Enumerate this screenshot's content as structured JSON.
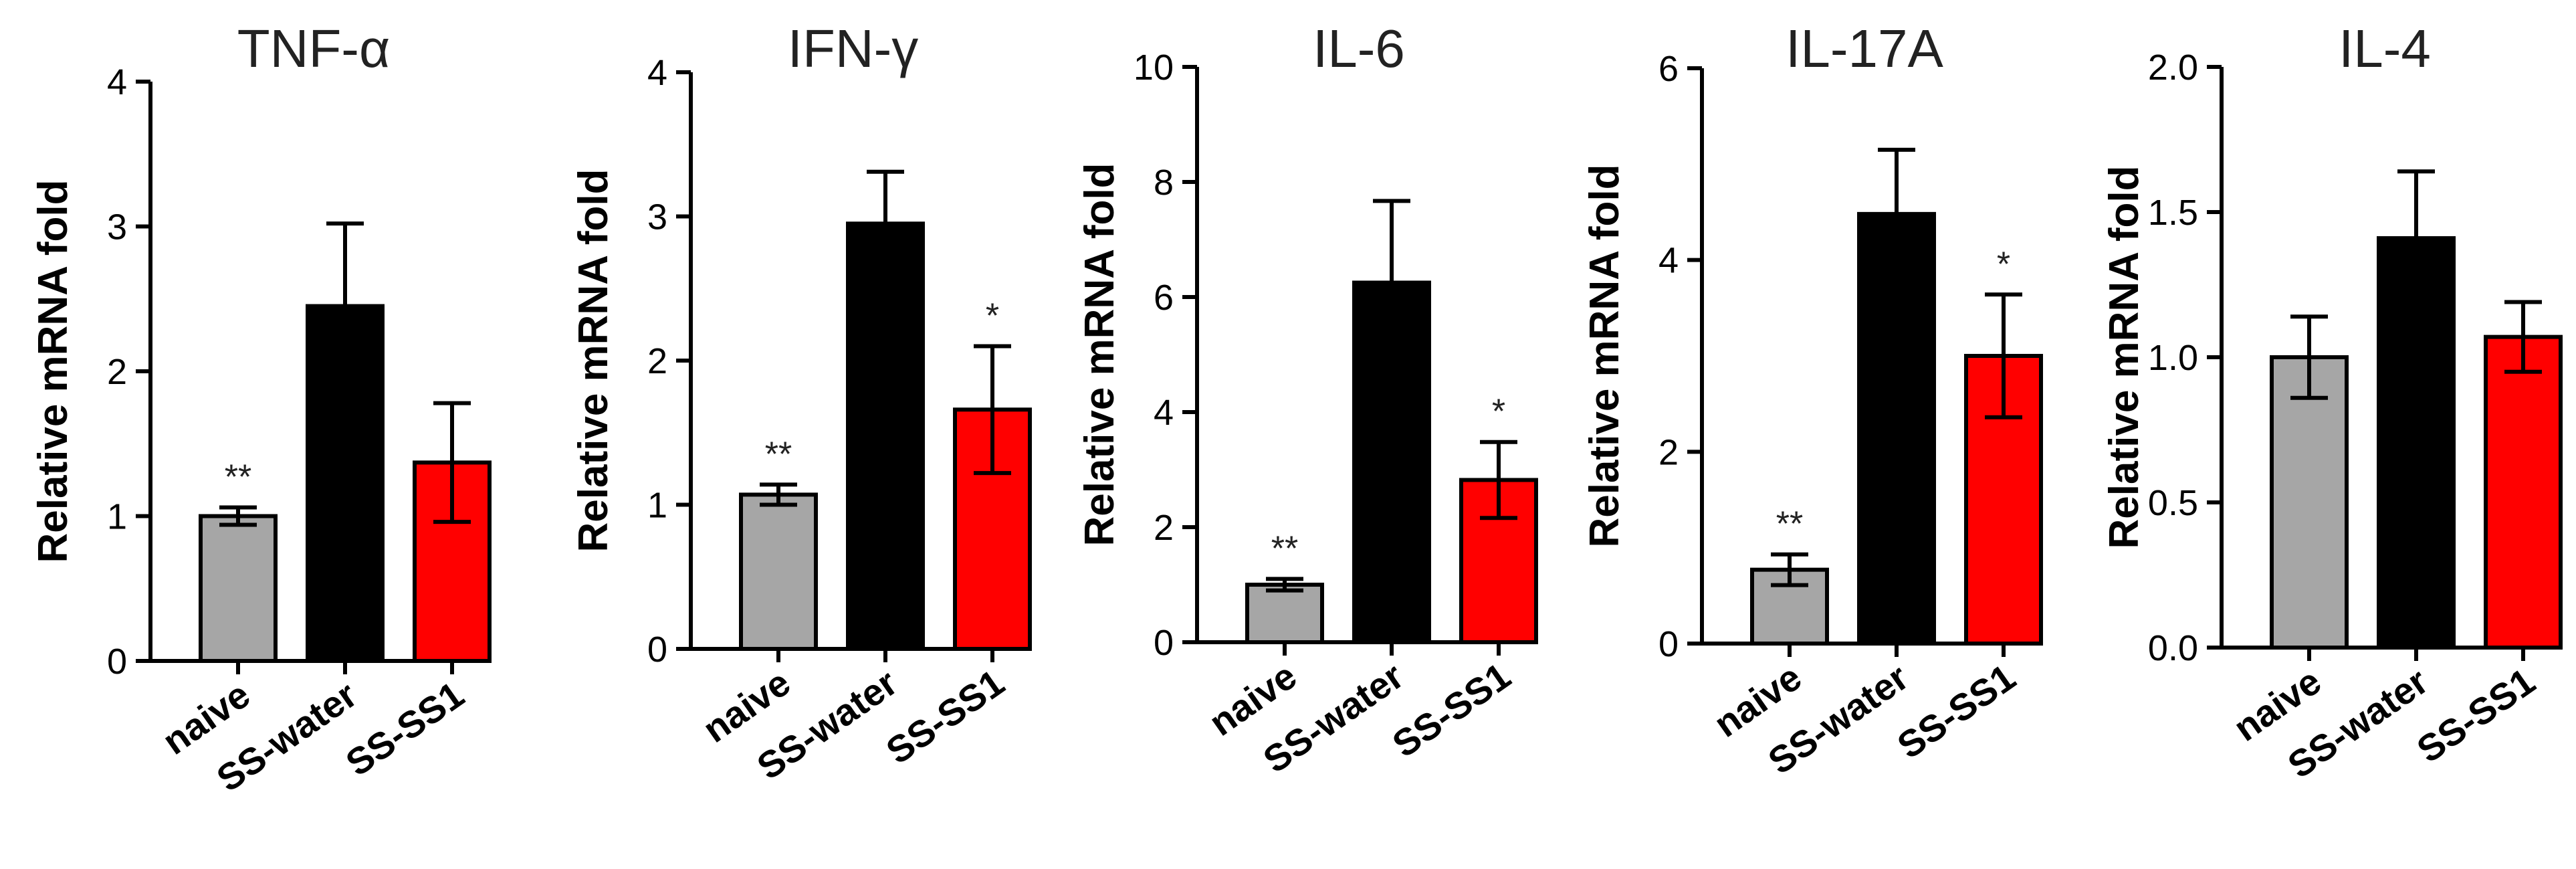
{
  "chart_data": [
    {
      "type": "bar",
      "title": "TNF-α",
      "ylabel": "Relative mRNA fold",
      "categories": [
        "naive",
        "SS-water",
        "SS-SS1"
      ],
      "values": [
        1.0,
        2.45,
        1.37
      ],
      "errors": [
        0.06,
        0.57,
        0.41
      ],
      "significance": [
        "**",
        "",
        ""
      ],
      "ylim": [
        0,
        4
      ],
      "yticks": [
        "0",
        "1",
        "2",
        "3",
        "4"
      ],
      "colors": [
        "#A6A6A6",
        "#000000",
        "#FF0000"
      ]
    },
    {
      "type": "bar",
      "title": "IFN-γ",
      "ylabel": "Relative mRNA fold",
      "categories": [
        "naive",
        "SS-water",
        "SS-SS1"
      ],
      "values": [
        1.07,
        2.95,
        1.66
      ],
      "errors": [
        0.07,
        0.36,
        0.44
      ],
      "significance": [
        "**",
        "",
        "*"
      ],
      "ylim": [
        0,
        4
      ],
      "yticks": [
        "0",
        "1",
        "2",
        "3",
        "4"
      ],
      "colors": [
        "#A6A6A6",
        "#000000",
        "#FF0000"
      ]
    },
    {
      "type": "bar",
      "title": "IL-6",
      "ylabel": "Relative mRNA fold",
      "categories": [
        "naive",
        "SS-water",
        "SS-SS1"
      ],
      "values": [
        1.0,
        6.25,
        2.82
      ],
      "errors": [
        0.1,
        1.42,
        0.66
      ],
      "significance": [
        "**",
        "",
        "*"
      ],
      "ylim": [
        0,
        10
      ],
      "yticks": [
        "0",
        "2",
        "4",
        "6",
        "8",
        "10"
      ],
      "colors": [
        "#A6A6A6",
        "#000000",
        "#FF0000"
      ]
    },
    {
      "type": "bar",
      "title": "IL-17A",
      "ylabel": "Relative mRNA fold",
      "categories": [
        "naive",
        "SS-water",
        "SS-SS1"
      ],
      "values": [
        0.77,
        4.48,
        3.0
      ],
      "errors": [
        0.16,
        0.67,
        0.64
      ],
      "significance": [
        "**",
        "",
        "*"
      ],
      "ylim": [
        0,
        6
      ],
      "yticks": [
        "0",
        "2",
        "4",
        "6"
      ],
      "colors": [
        "#A6A6A6",
        "#000000",
        "#FF0000"
      ]
    },
    {
      "type": "bar",
      "title": "IL-4",
      "ylabel": "Relative mRNA fold",
      "categories": [
        "naive",
        "SS-water",
        "SS-SS1"
      ],
      "values": [
        1.0,
        1.41,
        1.07
      ],
      "errors": [
        0.14,
        0.23,
        0.12
      ],
      "significance": [
        "",
        "",
        ""
      ],
      "ylim": [
        0,
        2.0
      ],
      "yticks": [
        "0.0",
        "0.5",
        "1.0",
        "1.5",
        "2.0"
      ],
      "colors": [
        "#A6A6A6",
        "#000000",
        "#FF0000"
      ]
    }
  ]
}
